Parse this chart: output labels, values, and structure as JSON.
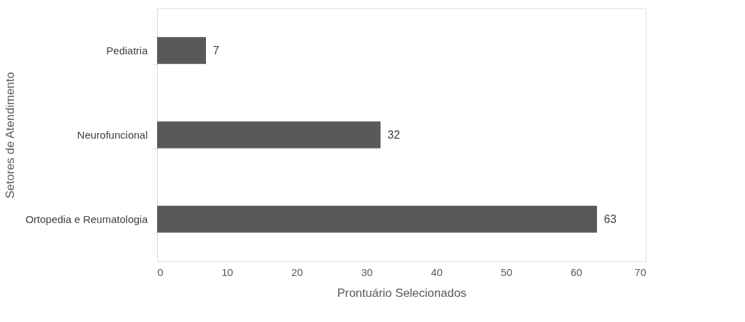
{
  "chart_data": {
    "type": "bar",
    "orientation": "horizontal",
    "categories": [
      "Pediatria",
      "Neurofuncional",
      "Ortopedia e Reumatologia"
    ],
    "values": [
      7,
      32,
      63
    ],
    "color": "#595959",
    "xlim": [
      0,
      70
    ],
    "xticks": [
      0,
      10,
      20,
      30,
      40,
      50,
      60,
      70
    ],
    "xlabel": "Prontuário Selecionados",
    "ylabel": "Setores de Atendimento",
    "grid": false,
    "data_labels": true
  }
}
